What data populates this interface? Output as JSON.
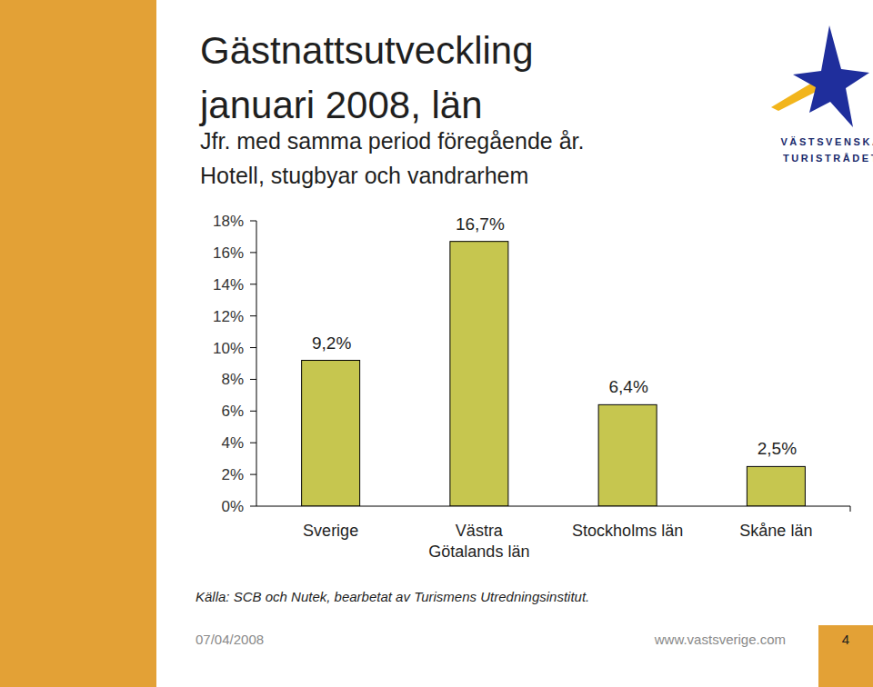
{
  "chart_data": {
    "type": "bar",
    "title": [
      "Gästnattsutveckling",
      "januari 2008, län"
    ],
    "subtitle": [
      "Jfr. med samma period föregående år.",
      "Hotell, stugbyar och vandrarhem"
    ],
    "categories": [
      "Sverige",
      "Västra Götalands län",
      "Stockholms län",
      "Skåne län"
    ],
    "values": [
      9.2,
      16.7,
      6.4,
      2.5
    ],
    "value_labels": [
      "9,2%",
      "16,7%",
      "6,4%",
      "2,5%"
    ],
    "color": "#c6c64f",
    "ylim": [
      0,
      18
    ],
    "yticks": [
      {
        "value": 0,
        "label": "0%"
      },
      {
        "value": 2,
        "label": "2%"
      },
      {
        "value": 4,
        "label": "4%"
      },
      {
        "value": 6,
        "label": "6%"
      },
      {
        "value": 8,
        "label": "8%"
      },
      {
        "value": 10,
        "label": "10%"
      },
      {
        "value": 12,
        "label": "12%"
      },
      {
        "value": 14,
        "label": "14%"
      },
      {
        "value": 16,
        "label": "16%"
      },
      {
        "value": 18,
        "label": "18%"
      }
    ],
    "grid": false,
    "data_labels": true
  },
  "source": "Källa: SCB och Nutek, bearbetat av Turismens Utredningsinstitut.",
  "logo": [
    "VÄSTSVENSKA",
    "TURISTRÅDET"
  ],
  "footer": {
    "date": "07/04/2008",
    "url": "www.vastsverige.com",
    "page": "4"
  }
}
